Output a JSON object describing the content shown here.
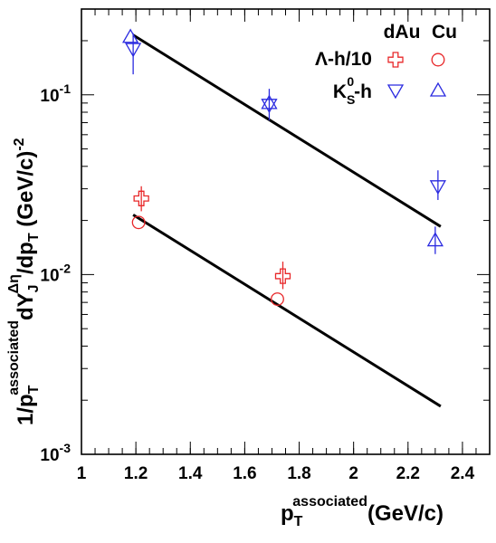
{
  "chart_data": {
    "type": "scatter",
    "xlabel": {
      "base": "p",
      "sub": "T",
      "sup": "associated",
      "rest": "(GeV/c)"
    },
    "ylabel": {
      "p1": "1/p",
      "sub1": "T",
      "sup1": "associated",
      "p2": "dY",
      "sub2": "J",
      "sup2": "Δη",
      "p3": "/dp",
      "sub3": "T",
      "p4": " (GeV/c)",
      "sup4": "-2"
    },
    "xlim": [
      1.0,
      2.5
    ],
    "ylim": [
      0.001,
      0.3
    ],
    "yscale": "log",
    "xticks": [
      "1",
      "1.2",
      "1.4",
      "1.6",
      "1.8",
      "2",
      "2.2",
      "2.4"
    ],
    "xtick_values": [
      1.0,
      1.2,
      1.4,
      1.6,
      1.8,
      2.0,
      2.2,
      2.4
    ],
    "yticks": [
      {
        "value": 0.001,
        "base": "10",
        "exp": "-3"
      },
      {
        "value": 0.01,
        "base": "10",
        "exp": "-2"
      },
      {
        "value": 0.1,
        "base": "10",
        "exp": "-1"
      }
    ],
    "legend": {
      "columns": [
        "dAu",
        "Cu"
      ],
      "rows": [
        {
          "label": "Λ-h/10",
          "label_sub": "",
          "label_sup": ""
        },
        {
          "label_pre": "K",
          "label_sub": "S",
          "label_sup": "0",
          "label_post": "-h"
        }
      ]
    },
    "series": [
      {
        "name": "Λ-h/10 dAu",
        "marker": "cross",
        "color": "#e8282a",
        "points": [
          {
            "x": 1.22,
            "y": 0.0265,
            "lo": 0.0225,
            "hi": 0.031
          },
          {
            "x": 1.74,
            "y": 0.0098,
            "lo": 0.0083,
            "hi": 0.0118
          }
        ]
      },
      {
        "name": "Λ-h/10 Cu",
        "marker": "circle",
        "color": "#e8282a",
        "points": [
          {
            "x": 1.21,
            "y": 0.0195,
            "lo": 0.0195,
            "hi": 0.0195
          },
          {
            "x": 1.72,
            "y": 0.0073,
            "lo": 0.0073,
            "hi": 0.0073
          }
        ]
      },
      {
        "name": "K0S-h dAu",
        "marker": "triangle-down",
        "color": "#2a2ae0",
        "points": [
          {
            "x": 1.19,
            "y": 0.18,
            "lo": 0.13,
            "hi": 0.22
          },
          {
            "x": 1.69,
            "y": 0.088,
            "lo": 0.072,
            "hi": 0.108
          },
          {
            "x": 2.31,
            "y": 0.031,
            "lo": 0.026,
            "hi": 0.038
          }
        ]
      },
      {
        "name": "K0S-h Cu",
        "marker": "triangle-up",
        "color": "#2a2ae0",
        "points": [
          {
            "x": 1.18,
            "y": 0.21,
            "lo": 0.21,
            "hi": 0.21
          },
          {
            "x": 1.69,
            "y": 0.09,
            "lo": 0.09,
            "hi": 0.09
          },
          {
            "x": 2.3,
            "y": 0.0155,
            "lo": 0.013,
            "hi": 0.0185
          }
        ]
      }
    ],
    "fits": [
      {
        "x": [
          1.19,
          2.32
        ],
        "y": [
          0.215,
          0.0185
        ]
      },
      {
        "x": [
          1.19,
          2.32
        ],
        "y": [
          0.0215,
          0.00185
        ]
      }
    ],
    "grid": false
  }
}
